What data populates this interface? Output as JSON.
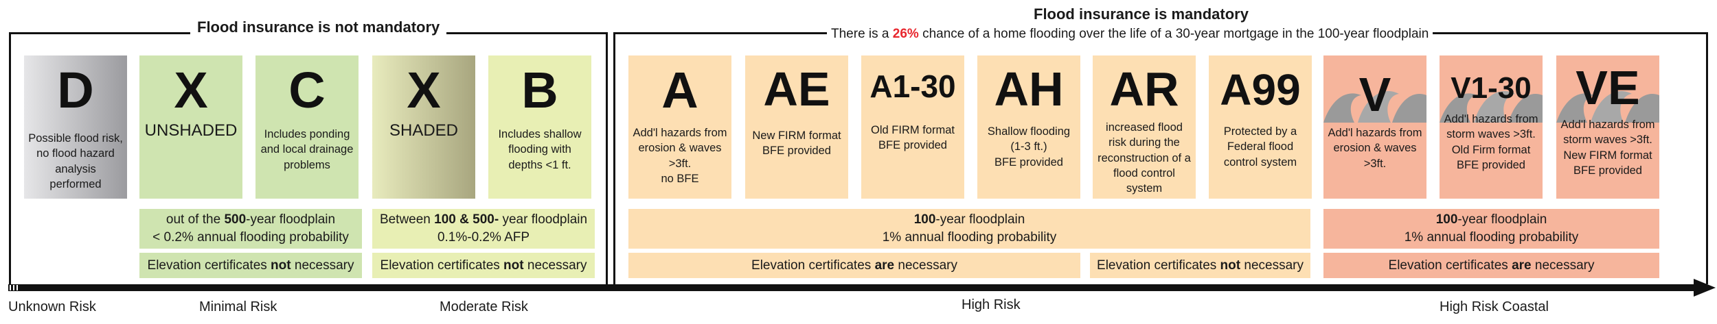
{
  "groups": {
    "not_mandatory": {
      "title": "Flood insurance is not mandatory"
    },
    "mandatory": {
      "title": "Flood insurance is mandatory",
      "subtitle_pre": "There is a ",
      "subtitle_pct": "26%",
      "subtitle_post": " chance of a home flooding over the life of a 30-year mortgage in the 100-year floodplain"
    }
  },
  "zones": {
    "d": {
      "code": "D",
      "desc": "Possible flood risk, no flood hazard analysis performed"
    },
    "x_unshaded": {
      "code": "X",
      "sub": "UNSHADED",
      "desc": ""
    },
    "c": {
      "code": "C",
      "desc": "Includes ponding and local drainage problems"
    },
    "x_shaded": {
      "code": "X",
      "sub": "SHADED",
      "desc": ""
    },
    "b": {
      "code": "B",
      "desc": "Includes shallow flooding with depths <1 ft."
    },
    "a": {
      "code": "A",
      "desc": "Add'l hazards from erosion & waves >3ft.\nno BFE"
    },
    "ae": {
      "code": "AE",
      "desc": "New FIRM format\nBFE provided"
    },
    "a1_30": {
      "code": "A1-30",
      "desc": "Old FIRM format\nBFE provided"
    },
    "ah": {
      "code": "AH",
      "desc": "Shallow flooding\n(1-3 ft.)\nBFE provided"
    },
    "ar": {
      "code": "AR",
      "desc": "increased flood risk during the reconstruction of a flood control system"
    },
    "a99": {
      "code": "A99",
      "desc": "Protected by a Federal flood control system"
    },
    "v": {
      "code": "V",
      "desc": "Add'l hazards from erosion & waves >3ft."
    },
    "v1_30": {
      "code": "V1-30",
      "desc": "Add'l hazards from storm waves >3ft.\nOld Firm format\nBFE provided"
    },
    "ve": {
      "code": "VE",
      "desc": "Add'l hazards from storm waves >3ft.\nNew FIRM format\nBFE provided"
    }
  },
  "bands": {
    "minimal_floodplain": {
      "pre": "out of the ",
      "bold": "500",
      "post": "-year floodplain",
      "line2": "< 0.2% annual flooding probability"
    },
    "minimal_cert": {
      "pre": "Elevation certificates ",
      "bold": "not",
      "post": " necessary"
    },
    "moderate_floodplain": {
      "pre": "Between ",
      "bold": "100 & 500-",
      "post": " year floodplain",
      "line2": "0.1%-0.2% AFP"
    },
    "moderate_cert": {
      "pre": "Elevation certificates ",
      "bold": "not",
      "post": " necessary"
    },
    "high_floodplain": {
      "bold": "100",
      "post": "-year floodplain",
      "line2": "1% annual flooding probability"
    },
    "high_cert_a": {
      "pre": "Elevation certificates ",
      "bold": "are",
      "post": " necessary"
    },
    "high_cert_b": {
      "pre": "Elevation certificates ",
      "bold": "not",
      "post": " necessary"
    },
    "coastal_floodplain": {
      "bold": "100",
      "post": "-year floodplain",
      "line2": "1% annual flooding probability"
    },
    "coastal_cert": {
      "pre": "Elevation certificates ",
      "bold": "are",
      "post": " necessary"
    }
  },
  "risk_levels": [
    "Unknown Risk",
    "Minimal Risk",
    "Moderate Risk",
    "High Risk",
    "High Risk Coastal"
  ],
  "colors": {
    "gray": "#c9c9cb",
    "green": "#cfe4b0",
    "olive": "#b4b28a",
    "lightyellow": "#e8efb4",
    "peach": "#fddfb3",
    "salmon": "#f6b59c",
    "red": "#e8262d"
  }
}
